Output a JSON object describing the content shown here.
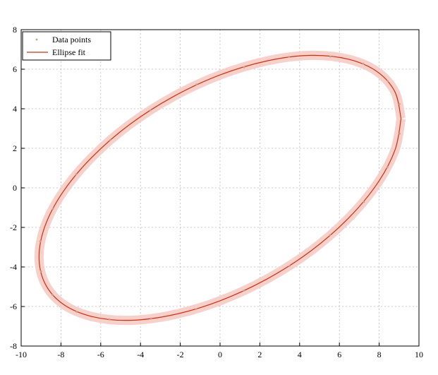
{
  "chart_data": {
    "type": "scatter",
    "xlim": [
      -10,
      10
    ],
    "ylim": [
      -8,
      8
    ],
    "xticks": [
      -10,
      -8,
      -6,
      -4,
      -2,
      0,
      2,
      4,
      6,
      8,
      10
    ],
    "yticks": [
      -8,
      -6,
      -4,
      -2,
      0,
      2,
      4,
      6,
      8
    ],
    "grid": true,
    "legend": "upper-left",
    "series": [
      {
        "name": "Data points",
        "color": "#c8a08a",
        "kind": "points",
        "x": [
          9.02,
          8.43,
          7.2,
          5.55,
          3.46,
          1.21,
          -1.18,
          -3.5,
          -5.52,
          -7.24,
          -8.4,
          -9.04,
          -9.0,
          -8.42,
          -7.21,
          -5.56,
          -3.47,
          -1.2,
          1.19,
          3.49,
          5.53,
          7.23,
          8.41,
          9.03
        ],
        "y": [
          4.24,
          5.4,
          6.28,
          6.64,
          6.63,
          6.1,
          5.23,
          3.92,
          2.42,
          0.68,
          -1.06,
          -2.71,
          -4.23,
          -5.41,
          -6.27,
          -6.65,
          -6.61,
          -6.13,
          -5.2,
          -3.95,
          -2.39,
          -0.71,
          1.04,
          2.74
        ]
      },
      {
        "name": "Ellipse fit",
        "color": "#d03010",
        "kind": "line",
        "band": "#f5c8c0",
        "x": [
          9.1,
          8.79,
          7.88,
          6.43,
          4.55,
          2.36,
          0,
          -2.36,
          -4.55,
          -6.43,
          -7.88,
          -8.79,
          -9.1,
          -8.79,
          -7.88,
          -6.43,
          -4.55,
          -2.36,
          0,
          2.36,
          4.55,
          6.43,
          7.88,
          8.79,
          9.1
        ],
        "y": [
          3.5,
          4.86,
          5.89,
          6.51,
          6.7,
          6.42,
          5.71,
          4.61,
          3.2,
          1.56,
          -0.18,
          -1.9,
          -3.5,
          -4.86,
          -5.89,
          -6.51,
          -6.7,
          -6.42,
          -5.71,
          -4.61,
          -3.2,
          -1.56,
          0.18,
          1.9,
          3.5
        ]
      }
    ]
  }
}
